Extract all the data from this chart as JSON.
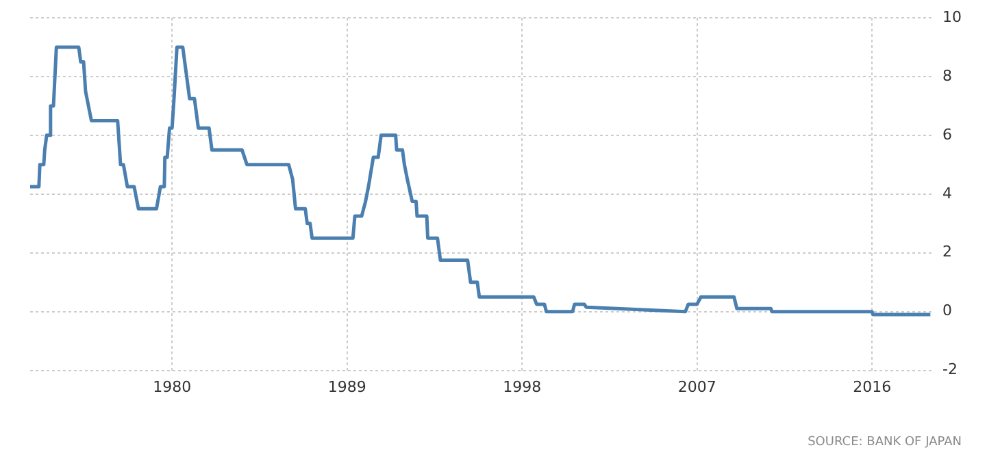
{
  "chart_data": {
    "type": "line",
    "xlim": [
      1972.7,
      2019.2
    ],
    "xticks": [
      1980,
      1989,
      1998,
      2007,
      2016
    ],
    "ylim": [
      -2,
      10
    ],
    "yticks": [
      -2,
      0,
      2,
      4,
      6,
      8,
      10
    ],
    "grid": true,
    "legend": false,
    "marker": "none",
    "line_style": "solid",
    "annotations": [
      "SOURCE: BANK OF JAPAN"
    ],
    "series": [
      {
        "color": "#4a7fb0",
        "x": [
          1972.7,
          1973.15,
          1973.2,
          1973.4,
          1973.45,
          1973.55,
          1973.7,
          1973.75,
          1973.9,
          1974.05,
          1975.2,
          1975.3,
          1975.45,
          1975.55,
          1975.85,
          1977.2,
          1977.35,
          1977.5,
          1977.7,
          1978.05,
          1978.27,
          1979.2,
          1979.4,
          1979.6,
          1979.63,
          1979.75,
          1979.87,
          1980.0,
          1980.1,
          1980.25,
          1980.55,
          1980.7,
          1980.9,
          1981.15,
          1981.35,
          1981.9,
          1982.05,
          1983.6,
          1983.85,
          1986.0,
          1986.2,
          1986.35,
          1986.85,
          1986.95,
          1987.1,
          1987.2,
          1989.3,
          1989.4,
          1989.75,
          1989.95,
          1990.1,
          1990.35,
          1990.6,
          1990.75,
          1991.5,
          1991.55,
          1991.85,
          1991.95,
          1992.1,
          1992.35,
          1992.55,
          1992.6,
          1993.1,
          1993.15,
          1993.65,
          1993.8,
          1995.2,
          1995.35,
          1995.7,
          1995.8,
          1998.6,
          1998.75,
          1999.15,
          1999.25,
          2000.6,
          2000.7,
          2001.2,
          2001.3,
          2006.4,
          2006.55,
          2007.0,
          2007.2,
          2008.9,
          2009.05,
          2010.8,
          2010.85,
          2016.0,
          2016.05,
          2019.0
        ],
        "values": [
          4.25,
          4.25,
          5.0,
          5.0,
          5.5,
          6.0,
          6.0,
          7.0,
          7.0,
          9.0,
          9.0,
          8.5,
          8.5,
          7.5,
          6.5,
          6.5,
          5.0,
          5.0,
          4.25,
          4.25,
          3.5,
          3.5,
          4.25,
          4.25,
          5.25,
          5.25,
          6.25,
          6.25,
          7.25,
          9.0,
          9.0,
          8.25,
          7.25,
          7.25,
          6.25,
          6.25,
          5.5,
          5.5,
          5.0,
          5.0,
          4.5,
          3.5,
          3.5,
          3.0,
          3.0,
          2.5,
          2.5,
          3.25,
          3.25,
          3.75,
          4.25,
          5.25,
          5.25,
          6.0,
          6.0,
          5.5,
          5.5,
          5.0,
          4.5,
          3.75,
          3.75,
          3.25,
          3.25,
          2.5,
          2.5,
          1.75,
          1.75,
          1.0,
          1.0,
          0.5,
          0.5,
          0.25,
          0.25,
          0,
          0,
          0.25,
          0.25,
          0.15,
          0,
          0.25,
          0.25,
          0.5,
          0.5,
          0.1,
          0.1,
          0,
          0,
          -0.1,
          -0.1
        ]
      }
    ]
  }
}
